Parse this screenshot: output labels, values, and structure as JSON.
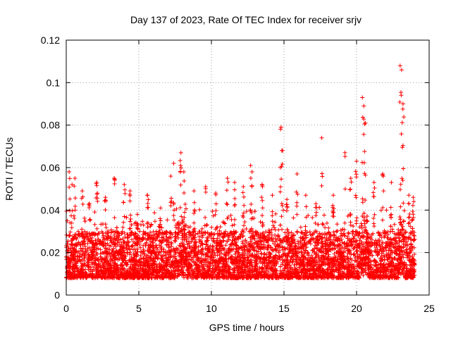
{
  "chart_data": {
    "type": "scatter",
    "title": "Day 137 of 2023, Rate Of TEC Index for receiver srjv",
    "xlabel": "GPS time / hours",
    "ylabel": "ROTI / TECUs",
    "xlim": [
      0,
      25
    ],
    "ylim": [
      0,
      0.12
    ],
    "x_ticks": [
      0,
      5,
      10,
      15,
      20,
      25
    ],
    "x_tick_labels": [
      "0",
      "5",
      "10",
      "15",
      "20",
      "25"
    ],
    "y_ticks": [
      0,
      0.02,
      0.04,
      0.06,
      0.08,
      0.1,
      0.12
    ],
    "y_tick_labels": [
      "0",
      "0.02",
      "0.04",
      "0.06",
      "0.08",
      "0.1",
      "0.12"
    ],
    "grid": true,
    "marker": "+",
    "series_color": "#ff0000",
    "series": [
      {
        "name": "ROTI",
        "note": "dense band of points roughly 0.005-0.035 TECUs across 0-24 h; representative outliers listed",
        "x": [
          0.2,
          0.4,
          0.6,
          1.1,
          1.6,
          2.1,
          2.7,
          3.3,
          4.0,
          4.4,
          4.9,
          5.6,
          6.5,
          7.2,
          7.4,
          7.9,
          8.1,
          8.8,
          9.6,
          10.3,
          11.1,
          11.6,
          12.2,
          12.7,
          12.8,
          13.5,
          14.2,
          14.8,
          14.9,
          15.2,
          15.9,
          16.5,
          17.2,
          17.6,
          18.4,
          19.2,
          19.6,
          20.0,
          20.4,
          20.5,
          20.6,
          21.2,
          21.8,
          22.4,
          23.0,
          23.1,
          23.2,
          23.6,
          23.9
        ],
        "y": [
          0.058,
          0.052,
          0.055,
          0.049,
          0.043,
          0.053,
          0.046,
          0.055,
          0.052,
          0.049,
          0.038,
          0.047,
          0.041,
          0.056,
          0.062,
          0.067,
          0.058,
          0.049,
          0.051,
          0.048,
          0.055,
          0.053,
          0.051,
          0.061,
          0.058,
          0.052,
          0.047,
          0.079,
          0.068,
          0.045,
          0.057,
          0.047,
          0.043,
          0.074,
          0.047,
          0.067,
          0.055,
          0.063,
          0.093,
          0.089,
          0.081,
          0.053,
          0.057,
          0.053,
          0.108,
          0.106,
          0.09,
          0.047,
          0.046
        ]
      }
    ]
  }
}
